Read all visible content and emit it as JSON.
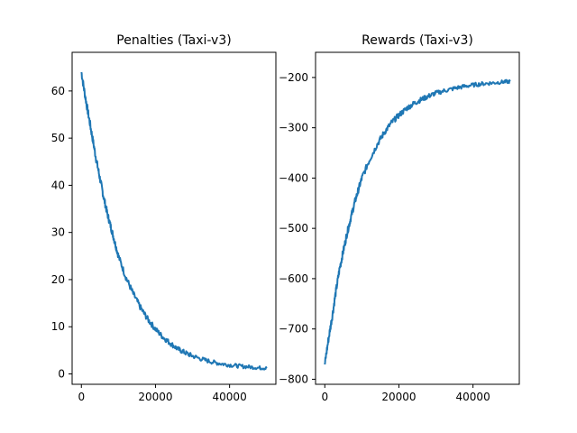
{
  "chart_data": [
    {
      "type": "line",
      "title": "Penalties (Taxi-v3)",
      "xlabel": "",
      "ylabel": "",
      "xlim": [
        -2500,
        52500
      ],
      "ylim": [
        -2.2,
        68.2
      ],
      "xticks": [
        0,
        20000,
        40000
      ],
      "xtick_labels": [
        "0",
        "20000",
        "40000"
      ],
      "yticks": [
        0,
        10,
        20,
        30,
        40,
        50,
        60
      ],
      "ytick_labels": [
        "0",
        "10",
        "20",
        "30",
        "40",
        "50",
        "60"
      ],
      "grid": false,
      "legend": "none",
      "color": "#1f77b4",
      "x": [
        0,
        1000,
        2000,
        3000,
        4000,
        5000,
        6000,
        7000,
        8000,
        9000,
        10000,
        12000,
        14000,
        16000,
        18000,
        20000,
        22000,
        24000,
        26000,
        28000,
        30000,
        33000,
        36000,
        39000,
        42000,
        45000,
        48000,
        50000
      ],
      "y": [
        64.0,
        59.0,
        54.5,
        50.0,
        45.5,
        41.5,
        37.5,
        34.0,
        31.0,
        28.0,
        25.0,
        20.5,
        17.0,
        14.0,
        11.5,
        9.5,
        7.8,
        6.5,
        5.3,
        4.5,
        3.8,
        3.0,
        2.4,
        2.0,
        1.7,
        1.5,
        1.3,
        1.2
      ]
    },
    {
      "type": "line",
      "title": "Rewards (Taxi-v3)",
      "xlabel": "",
      "ylabel": "",
      "xlim": [
        -2500,
        52500
      ],
      "ylim": [
        -810,
        -150
      ],
      "xticks": [
        0,
        20000,
        40000
      ],
      "xtick_labels": [
        "0",
        "20000",
        "40000"
      ],
      "yticks": [
        -800,
        -700,
        -600,
        -500,
        -400,
        -300,
        -200
      ],
      "ytick_labels": [
        "−800",
        "−700",
        "−600",
        "−500",
        "−400",
        "−300",
        "−200"
      ],
      "grid": false,
      "legend": "none",
      "color": "#1f77b4",
      "x": [
        0,
        1000,
        2000,
        3000,
        4000,
        5000,
        6000,
        7000,
        8000,
        9000,
        10000,
        12000,
        14000,
        16000,
        18000,
        20000,
        22000,
        24000,
        26000,
        28000,
        30000,
        33000,
        36000,
        39000,
        42000,
        45000,
        48000,
        50000
      ],
      "y": [
        -770,
        -720,
        -675,
        -625,
        -580,
        -545,
        -510,
        -480,
        -450,
        -425,
        -400,
        -365,
        -335,
        -310,
        -290,
        -275,
        -262,
        -252,
        -244,
        -237,
        -231,
        -225,
        -220,
        -216,
        -213,
        -211,
        -209,
        -208
      ]
    }
  ]
}
